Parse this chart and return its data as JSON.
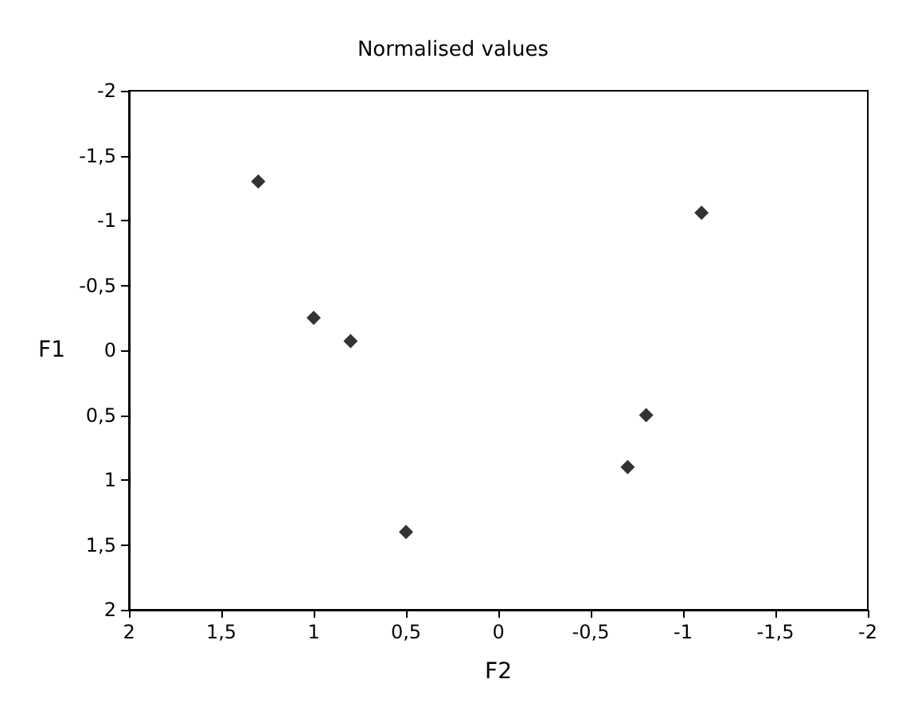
{
  "chart_data": {
    "type": "scatter",
    "title": "Normalised values",
    "xlabel": "F2",
    "ylabel": "F1",
    "x": [
      1.3,
      1.0,
      0.8,
      0.5,
      -1.1,
      -0.8,
      -0.7
    ],
    "series": [
      {
        "color": "#000000",
        "values": [
          -1.3,
          -0.25,
          -0.07,
          1.4,
          -1.06,
          0.5,
          0.9
        ]
      }
    ],
    "xlim": [
      2,
      -2
    ],
    "ylim": [
      2,
      -2
    ],
    "xticks": [
      2,
      {
        "value": 1.5,
        "label": "1,5"
      },
      1,
      {
        "value": 0.5,
        "label": "0,5"
      },
      0,
      {
        "value": -0.5,
        "label": "-0,5"
      },
      -1,
      {
        "value": -1.5,
        "label": "-1,5"
      },
      -2
    ],
    "yticks": [
      2,
      {
        "value": 1.5,
        "label": "1,5"
      },
      1,
      {
        "value": 0.5,
        "label": "0,5"
      },
      0,
      {
        "value": -0.5,
        "label": "-0,5"
      },
      -1,
      {
        "value": -1.5,
        "label": "-1,5"
      },
      -2
    ],
    "grid": false,
    "marker": "diamond"
  }
}
